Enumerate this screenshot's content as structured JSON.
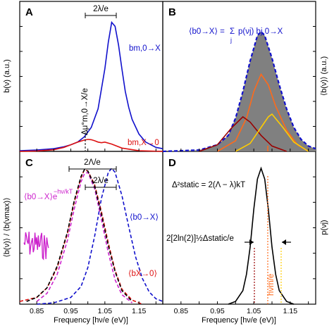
{
  "chart_data": [
    {
      "panel": "A",
      "type": "line",
      "ylabel": "b(ν) (a.u.)",
      "xlim": [
        0.8,
        1.22
      ],
      "ylim": [
        0,
        1.0
      ],
      "series": [
        {
          "name": "b_m,0→X",
          "color": "#1010cc",
          "x": [
            0.8,
            0.85,
            0.9,
            0.93,
            0.95,
            0.97,
            0.99,
            1.01,
            1.03,
            1.05,
            1.06,
            1.07,
            1.08,
            1.09,
            1.1,
            1.11,
            1.12,
            1.13,
            1.15,
            1.17,
            1.2,
            1.22
          ],
          "y": [
            0.005,
            0.01,
            0.02,
            0.035,
            0.05,
            0.07,
            0.11,
            0.18,
            0.32,
            0.62,
            0.82,
            0.97,
            0.94,
            0.8,
            0.62,
            0.45,
            0.33,
            0.24,
            0.13,
            0.07,
            0.03,
            0.02
          ]
        },
        {
          "name": "b_m,X→0",
          "color": "#dd1111",
          "x": [
            0.8,
            0.85,
            0.9,
            0.93,
            0.95,
            0.97,
            0.99,
            1.0,
            1.01,
            1.02,
            1.03,
            1.04,
            1.05,
            1.07,
            1.1,
            1.15,
            1.22
          ],
          "y": [
            0.0,
            0.003,
            0.012,
            0.03,
            0.05,
            0.07,
            0.085,
            0.09,
            0.088,
            0.08,
            0.07,
            0.065,
            0.07,
            0.055,
            0.025,
            0.005,
            0.0
          ]
        }
      ],
      "annotations": {
        "bracket_label": "2λ/e",
        "dashed_label": "Δμ°m,0→X/e",
        "label_blue": "bm,0→X",
        "label_red": "bm,X→0"
      }
    },
    {
      "panel": "B",
      "type": "area",
      "ylabel": "⟨b(ν)⟩ (a.u.)",
      "xlim": [
        0.8,
        1.22
      ],
      "ylim": [
        0,
        1.0
      ],
      "series": [
        {
          "name": "⟨b0→X⟩",
          "color": "#1010cc",
          "x": [
            0.8,
            0.9,
            0.95,
            0.98,
            1.0,
            1.02,
            1.04,
            1.06,
            1.07,
            1.08,
            1.1,
            1.12,
            1.14,
            1.16,
            1.18,
            1.2,
            1.22
          ],
          "y": [
            0.0,
            0.01,
            0.05,
            0.12,
            0.25,
            0.45,
            0.68,
            0.87,
            0.9,
            0.87,
            0.7,
            0.5,
            0.32,
            0.18,
            0.09,
            0.04,
            0.02
          ]
        },
        {
          "name": "orange",
          "color": "#ff6a1a",
          "x": [
            0.95,
            1.0,
            1.03,
            1.05,
            1.07,
            1.09,
            1.11,
            1.14,
            1.17,
            1.2
          ],
          "y": [
            0.0,
            0.08,
            0.25,
            0.45,
            0.58,
            0.5,
            0.34,
            0.16,
            0.05,
            0.0
          ]
        },
        {
          "name": "dark-red",
          "color": "#990000",
          "x": [
            0.9,
            0.95,
            0.99,
            1.02,
            1.04,
            1.07,
            1.1,
            1.14
          ],
          "y": [
            0.0,
            0.05,
            0.18,
            0.26,
            0.22,
            0.12,
            0.04,
            0.0
          ]
        },
        {
          "name": "yellow",
          "color": "#ffcc00",
          "x": [
            1.0,
            1.04,
            1.07,
            1.09,
            1.1,
            1.13,
            1.16,
            1.2
          ],
          "y": [
            0.0,
            0.06,
            0.18,
            0.26,
            0.28,
            0.18,
            0.07,
            0.0
          ]
        }
      ],
      "annotations": {
        "formula_lhs": "⟨b0→X⟩ =",
        "formula_sum": "Σ",
        "formula_sub": "j",
        "formula_rhs": "p(νj) bj,0→X"
      }
    },
    {
      "panel": "C",
      "type": "line",
      "xlabel": "Frequency [hν/e (eV)]",
      "ylabel": "⟨b(ν)⟩ / ⟨b(νmax)⟩",
      "xlim": [
        0.8,
        1.22
      ],
      "ylim": [
        0,
        1.0
      ],
      "xticks": [
        "0.85",
        "0.95",
        "1.05",
        "1.15"
      ],
      "series": [
        {
          "name": "⟨b0→X⟩",
          "color": "#1010cc",
          "dash": true,
          "x": [
            0.85,
            0.9,
            0.95,
            0.98,
            1.0,
            1.02,
            1.04,
            1.06,
            1.07,
            1.08,
            1.1,
            1.12,
            1.14,
            1.16,
            1.18,
            1.2,
            1.22
          ],
          "y": [
            0.0,
            0.01,
            0.05,
            0.13,
            0.27,
            0.5,
            0.78,
            0.97,
            1.0,
            0.97,
            0.8,
            0.57,
            0.35,
            0.19,
            0.09,
            0.04,
            0.02
          ]
        },
        {
          "name": "⟨bX→0⟩",
          "color": "#dd1111",
          "dash": true,
          "x": [
            0.8,
            0.85,
            0.88,
            0.91,
            0.94,
            0.96,
            0.98,
            0.99,
            1.0,
            1.02,
            1.04,
            1.06,
            1.08,
            1.1,
            1.13,
            1.16
          ],
          "y": [
            0.02,
            0.05,
            0.12,
            0.27,
            0.52,
            0.75,
            0.93,
            0.99,
            0.98,
            0.88,
            0.68,
            0.45,
            0.25,
            0.11,
            0.03,
            0.0
          ]
        },
        {
          "name": "⟨b0→X⟩e^-hν/kT",
          "color": "#cc22cc",
          "dash": true,
          "x": [
            0.85,
            0.88,
            0.91,
            0.94,
            0.96,
            0.98,
            0.99,
            1.0,
            1.02,
            1.04,
            1.06,
            1.08,
            1.1,
            1.13
          ],
          "y": [
            0.02,
            0.08,
            0.22,
            0.47,
            0.7,
            0.9,
            0.96,
            0.97,
            0.85,
            0.62,
            0.38,
            0.18,
            0.07,
            0.01
          ]
        },
        {
          "name": "fit",
          "color": "#000000",
          "dash": true,
          "x": [
            0.82,
            0.85,
            0.88,
            0.91,
            0.94,
            0.96,
            0.98,
            0.99,
            1.0,
            1.02,
            1.04,
            1.06,
            1.08,
            1.1,
            1.13
          ],
          "y": [
            0.02,
            0.05,
            0.12,
            0.28,
            0.53,
            0.76,
            0.94,
            0.99,
            0.98,
            0.87,
            0.66,
            0.43,
            0.24,
            0.1,
            0.02
          ]
        }
      ],
      "annotations": {
        "bracket_outer": "2Λ/e",
        "bracket_inner": "2λ/e",
        "label_blue": "⟨b0→X⟩",
        "label_red": "⟨bX→0⟩",
        "label_magenta": "⟨b0→X⟩e",
        "label_magenta_sup": "−hν/kT"
      }
    },
    {
      "panel": "D",
      "type": "line",
      "xlabel": "Frequency [hν/e (eV)]",
      "ylabel": "p(νj)",
      "xlim": [
        0.8,
        1.22
      ],
      "ylim": [
        0,
        1.0
      ],
      "xticks": [
        "0.85",
        "0.95",
        "1.05",
        "1.15"
      ],
      "series": [
        {
          "name": "p",
          "color": "#000000",
          "x": [
            0.98,
            1.0,
            1.02,
            1.03,
            1.04,
            1.05,
            1.06,
            1.07,
            1.08,
            1.09,
            1.1,
            1.11,
            1.12,
            1.14,
            1.16
          ],
          "y": [
            0.0,
            0.02,
            0.1,
            0.22,
            0.42,
            0.7,
            0.92,
            1.0,
            0.92,
            0.7,
            0.42,
            0.22,
            0.1,
            0.02,
            0.0
          ]
        }
      ],
      "annotations": {
        "static_lhs": "Δ²static = 2(Λ − λ)kT",
        "width_label": "2[2ln(2)]½Δstatic/e",
        "hvm_label": "hνm/e"
      }
    }
  ],
  "colors": {
    "blue": "#1010cc",
    "red": "#dd1111",
    "magenta": "#cc22cc",
    "orange": "#ff6a1a",
    "darkred": "#990000",
    "yellow": "#ffcc00",
    "gray": "#808080"
  }
}
